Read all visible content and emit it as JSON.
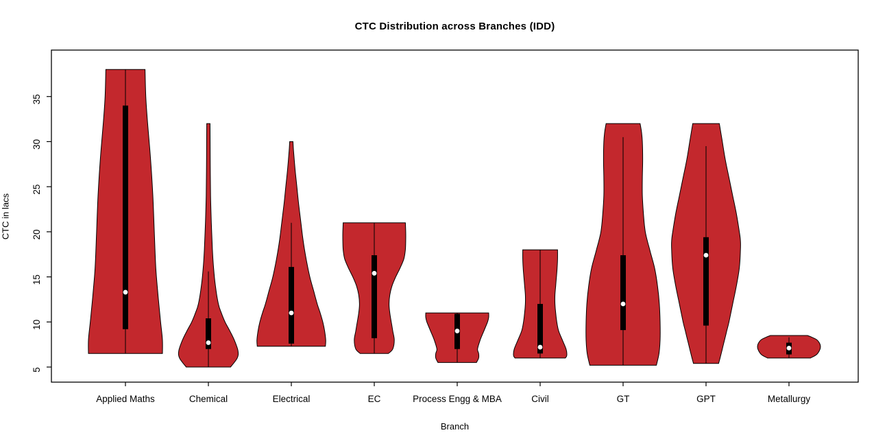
{
  "chart_data": {
    "type": "violin",
    "title": "CTC Distribution across Branches (IDD)",
    "xlabel": "Branch",
    "ylabel": "CTC in lacs",
    "yticks": [
      5,
      10,
      15,
      20,
      25,
      30,
      35
    ],
    "ylim": [
      3.8,
      40.2
    ],
    "grid": false,
    "fill_color": "#C3282D",
    "outline_color": "#000000",
    "box_color": "#000000",
    "median_dot_color": "#ffffff",
    "categories": [
      "Applied Maths",
      "Chemical",
      "Electrical",
      "EC",
      "Process Engg & MBA",
      "Civil",
      "GT",
      "GPT",
      "Metallurgy"
    ],
    "violins": [
      {
        "branch": "Applied Maths",
        "min": 6.5,
        "max": 38,
        "q1": 9.2,
        "q3": 34,
        "median": 13.3,
        "whisker_low": 6.5,
        "whisker_high": 38,
        "width_profile": [
          [
            6.5,
            1.0
          ],
          [
            8,
            1.0
          ],
          [
            10,
            0.95
          ],
          [
            13,
            0.88
          ],
          [
            16,
            0.82
          ],
          [
            20,
            0.78
          ],
          [
            24,
            0.74
          ],
          [
            28,
            0.68
          ],
          [
            32,
            0.6
          ],
          [
            35,
            0.55
          ],
          [
            38,
            0.53
          ]
        ]
      },
      {
        "branch": "Chemical",
        "min": 5,
        "max": 32,
        "q1": 7.0,
        "q3": 10.4,
        "median": 7.7,
        "whisker_low": 5,
        "whisker_high": 15.6,
        "width_profile": [
          [
            5,
            0.6
          ],
          [
            6,
            0.78
          ],
          [
            6.8,
            0.8
          ],
          [
            8,
            0.7
          ],
          [
            9,
            0.58
          ],
          [
            10,
            0.45
          ],
          [
            11,
            0.35
          ],
          [
            12,
            0.27
          ],
          [
            14,
            0.19
          ],
          [
            16,
            0.14
          ],
          [
            18,
            0.11
          ],
          [
            21,
            0.08
          ],
          [
            24,
            0.06
          ],
          [
            28,
            0.05
          ],
          [
            32,
            0.045
          ]
        ]
      },
      {
        "branch": "Electrical",
        "min": 7.3,
        "max": 30,
        "q1": 7.6,
        "q3": 16.1,
        "median": 11.0,
        "whisker_low": 7.3,
        "whisker_high": 21,
        "width_profile": [
          [
            7.3,
            0.92
          ],
          [
            8,
            0.93
          ],
          [
            9,
            0.9
          ],
          [
            10,
            0.85
          ],
          [
            11,
            0.78
          ],
          [
            12,
            0.7
          ],
          [
            13.5,
            0.6
          ],
          [
            15,
            0.5
          ],
          [
            17,
            0.4
          ],
          [
            19,
            0.32
          ],
          [
            21,
            0.26
          ],
          [
            23,
            0.2
          ],
          [
            25,
            0.15
          ],
          [
            27,
            0.1
          ],
          [
            29,
            0.06
          ],
          [
            30,
            0.045
          ]
        ]
      },
      {
        "branch": "EC",
        "min": 6.5,
        "max": 21,
        "q1": 8.2,
        "q3": 17.4,
        "median": 15.4,
        "whisker_low": 6.5,
        "whisker_high": 21,
        "width_profile": [
          [
            6.5,
            0.38
          ],
          [
            7,
            0.5
          ],
          [
            8,
            0.54
          ],
          [
            9,
            0.5
          ],
          [
            10,
            0.46
          ],
          [
            11,
            0.42
          ],
          [
            12,
            0.4
          ],
          [
            13,
            0.42
          ],
          [
            14,
            0.48
          ],
          [
            15,
            0.58
          ],
          [
            16,
            0.7
          ],
          [
            17,
            0.8
          ],
          [
            18,
            0.84
          ],
          [
            19,
            0.85
          ],
          [
            20,
            0.85
          ],
          [
            21,
            0.84
          ]
        ]
      },
      {
        "branch": "Process Engg & MBA",
        "min": 5.5,
        "max": 11,
        "q1": 7.0,
        "q3": 10.9,
        "median": 9.0,
        "whisker_low": 5.5,
        "whisker_high": 11,
        "width_profile": [
          [
            5.5,
            0.52
          ],
          [
            6,
            0.58
          ],
          [
            6.5,
            0.58
          ],
          [
            7,
            0.55
          ],
          [
            8,
            0.62
          ],
          [
            9,
            0.72
          ],
          [
            10,
            0.82
          ],
          [
            10.5,
            0.85
          ],
          [
            11,
            0.85
          ]
        ]
      },
      {
        "branch": "Civil",
        "min": 6,
        "max": 18,
        "q1": 6.5,
        "q3": 12.0,
        "median": 7.2,
        "whisker_low": 6,
        "whisker_high": 18,
        "width_profile": [
          [
            6,
            0.68
          ],
          [
            6.3,
            0.72
          ],
          [
            7,
            0.7
          ],
          [
            8,
            0.6
          ],
          [
            9,
            0.5
          ],
          [
            10,
            0.45
          ],
          [
            11,
            0.42
          ],
          [
            12,
            0.4
          ],
          [
            13,
            0.4
          ],
          [
            14,
            0.42
          ],
          [
            15,
            0.44
          ],
          [
            16,
            0.46
          ],
          [
            17,
            0.47
          ],
          [
            18,
            0.47
          ]
        ]
      },
      {
        "branch": "GT",
        "min": 5.2,
        "max": 32,
        "q1": 9.1,
        "q3": 17.4,
        "median": 12.0,
        "whisker_low": 5.2,
        "whisker_high": 30.5,
        "width_profile": [
          [
            5.2,
            0.9
          ],
          [
            6.5,
            0.97
          ],
          [
            8,
            1.0
          ],
          [
            10,
            1.0
          ],
          [
            12,
            0.98
          ],
          [
            14,
            0.93
          ],
          [
            16,
            0.85
          ],
          [
            18,
            0.72
          ],
          [
            20,
            0.6
          ],
          [
            22,
            0.55
          ],
          [
            24,
            0.52
          ],
          [
            26,
            0.52
          ],
          [
            28,
            0.53
          ],
          [
            30,
            0.52
          ],
          [
            31,
            0.5
          ],
          [
            32,
            0.46
          ]
        ]
      },
      {
        "branch": "GPT",
        "min": 5.4,
        "max": 32,
        "q1": 9.6,
        "q3": 19.4,
        "median": 17.4,
        "whisker_low": 5.4,
        "whisker_high": 29.5,
        "width_profile": [
          [
            5.4,
            0.34
          ],
          [
            6,
            0.38
          ],
          [
            7,
            0.44
          ],
          [
            8,
            0.5
          ],
          [
            9,
            0.56
          ],
          [
            10,
            0.62
          ],
          [
            12,
            0.72
          ],
          [
            14,
            0.82
          ],
          [
            16,
            0.9
          ],
          [
            18,
            0.93
          ],
          [
            19,
            0.93
          ],
          [
            20,
            0.9
          ],
          [
            22,
            0.82
          ],
          [
            24,
            0.72
          ],
          [
            26,
            0.62
          ],
          [
            28,
            0.52
          ],
          [
            30,
            0.44
          ],
          [
            31,
            0.4
          ],
          [
            32,
            0.36
          ]
        ]
      },
      {
        "branch": "Metallurgy",
        "min": 6,
        "max": 8.5,
        "q1": 6.4,
        "q3": 7.7,
        "median": 7.1,
        "whisker_low": 6,
        "whisker_high": 8.3,
        "width_profile": [
          [
            6,
            0.58
          ],
          [
            6.4,
            0.75
          ],
          [
            7,
            0.84
          ],
          [
            7.5,
            0.84
          ],
          [
            8,
            0.76
          ],
          [
            8.3,
            0.62
          ],
          [
            8.5,
            0.5
          ]
        ]
      }
    ]
  }
}
